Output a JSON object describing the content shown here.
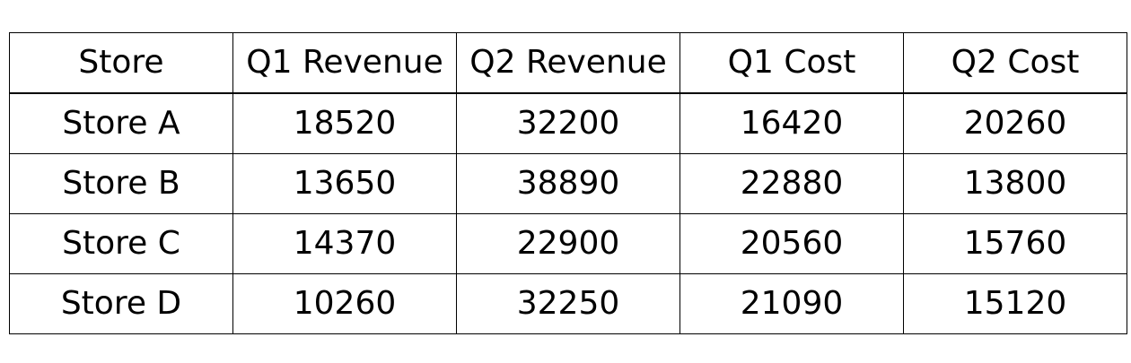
{
  "chart_data": {
    "type": "table",
    "columns": [
      "Store",
      "Q1 Revenue",
      "Q2 Revenue",
      "Q1 Cost",
      "Q2 Cost"
    ],
    "rows": [
      [
        "Store A",
        "18520",
        "32200",
        "16420",
        "20260"
      ],
      [
        "Store B",
        "13650",
        "38890",
        "22880",
        "13800"
      ],
      [
        "Store C",
        "14370",
        "22900",
        "20560",
        "15760"
      ],
      [
        "Store D",
        "10260",
        "32250",
        "21090",
        "15120"
      ]
    ]
  }
}
